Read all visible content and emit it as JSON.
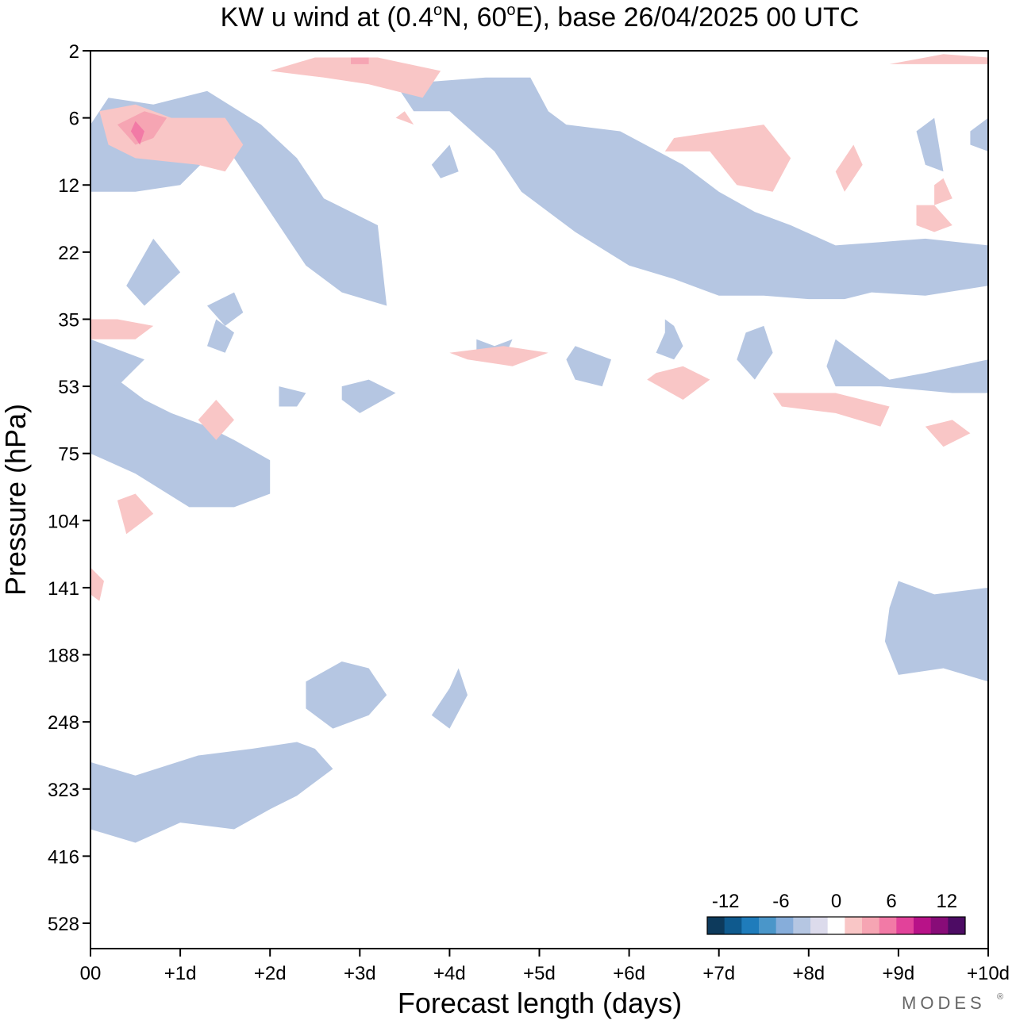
{
  "chart_data": {
    "type": "heatmap",
    "title": "KW u wind at (0.4°N, 60°E),  base 26/04/2025  00 UTC",
    "title_parts": {
      "pre": "KW u wind at (0.4",
      "deg1": "o",
      "mid1": "N, 60",
      "deg2": "o",
      "post": "E),  base 26/04/2025  00 UTC"
    },
    "xlabel": "Forecast length (days)",
    "ylabel": "Pressure (hPa)",
    "xlim": [
      0,
      10
    ],
    "x_ticks": [
      {
        "value": 0,
        "label": "00"
      },
      {
        "value": 1,
        "label": "+1d"
      },
      {
        "value": 2,
        "label": "+2d"
      },
      {
        "value": 3,
        "label": "+3d"
      },
      {
        "value": 4,
        "label": "+4d"
      },
      {
        "value": 5,
        "label": "+5d"
      },
      {
        "value": 6,
        "label": "+6d"
      },
      {
        "value": 7,
        "label": "+7d"
      },
      {
        "value": 8,
        "label": "+8d"
      },
      {
        "value": 9,
        "label": "+9d"
      },
      {
        "value": 10,
        "label": "+10d"
      }
    ],
    "y_ticks": [
      "2",
      "6",
      "12",
      "22",
      "35",
      "53",
      "75",
      "104",
      "141",
      "188",
      "248",
      "323",
      "416",
      "528"
    ],
    "y_scale": "pressure levels, top to bottom",
    "colorbar": {
      "ticks": [
        {
          "value": -12,
          "label": "-12"
        },
        {
          "value": -6,
          "label": "-6"
        },
        {
          "value": 0,
          "label": "0"
        },
        {
          "value": 6,
          "label": "6"
        },
        {
          "value": 12,
          "label": "12"
        }
      ],
      "range": [
        -14,
        14
      ],
      "step": 2,
      "colors": [
        "#0d3a5c",
        "#0f5a8e",
        "#1f7cbb",
        "#4a96c9",
        "#86adda",
        "#b5c6e2",
        "#dcdbec",
        "#ffffff",
        "#f9c6c6",
        "#f6a5b3",
        "#f27aa6",
        "#e2429a",
        "#b81288",
        "#880c78",
        "#4d0c64"
      ]
    },
    "regions": [
      {
        "level": -4,
        "pts": [
          [
            0,
            2.1
          ],
          [
            0.5,
            2.1
          ],
          [
            1.0,
            2.0
          ],
          [
            1.3,
            1.6
          ],
          [
            1.6,
            1.6
          ],
          [
            2.0,
            2.4
          ],
          [
            2.4,
            3.2
          ],
          [
            2.8,
            3.6
          ],
          [
            3.3,
            3.8
          ],
          [
            3.2,
            2.6
          ],
          [
            2.6,
            2.2
          ],
          [
            2.3,
            1.6
          ],
          [
            1.9,
            1.1
          ],
          [
            1.3,
            0.6
          ],
          [
            0.7,
            0.8
          ],
          [
            0.2,
            0.7
          ],
          [
            0,
            1.1
          ]
        ]
      },
      {
        "level": -4,
        "pts": [
          [
            3.4,
            0.5
          ],
          [
            4.4,
            0.4
          ],
          [
            4.9,
            0.4
          ],
          [
            5.1,
            0.9
          ],
          [
            5.3,
            1.1
          ],
          [
            5.9,
            1.2
          ],
          [
            6.6,
            1.7
          ],
          [
            7.0,
            2.1
          ],
          [
            7.4,
            2.4
          ],
          [
            7.8,
            2.6
          ],
          [
            8.3,
            2.9
          ],
          [
            8.8,
            2.85
          ],
          [
            9.3,
            2.8
          ],
          [
            10,
            2.9
          ],
          [
            10,
            3.5
          ],
          [
            9.3,
            3.65
          ],
          [
            8.7,
            3.6
          ],
          [
            8.4,
            3.7
          ],
          [
            8.0,
            3.7
          ],
          [
            7.5,
            3.65
          ],
          [
            7.0,
            3.65
          ],
          [
            6.5,
            3.4
          ],
          [
            6.0,
            3.2
          ],
          [
            5.4,
            2.7
          ],
          [
            5.1,
            2.4
          ],
          [
            4.8,
            2.1
          ],
          [
            4.5,
            1.5
          ],
          [
            4.0,
            0.9
          ],
          [
            3.6,
            0.9
          ]
        ]
      },
      {
        "level": -4,
        "pts": [
          [
            9.0,
            7.9
          ],
          [
            9.4,
            8.1
          ],
          [
            10,
            8.0
          ],
          [
            10,
            9.4
          ],
          [
            9.5,
            9.2
          ],
          [
            9.0,
            9.3
          ],
          [
            8.85,
            8.8
          ],
          [
            8.9,
            8.3
          ]
        ]
      },
      {
        "level": -4,
        "pts": [
          [
            0,
            11.6
          ],
          [
            0.5,
            11.8
          ],
          [
            1.0,
            11.5
          ],
          [
            1.6,
            11.6
          ],
          [
            2.0,
            11.3
          ],
          [
            2.3,
            11.1
          ],
          [
            2.7,
            10.7
          ],
          [
            2.5,
            10.4
          ],
          [
            2.3,
            10.3
          ],
          [
            1.8,
            10.4
          ],
          [
            1.2,
            10.5
          ],
          [
            0.5,
            10.8
          ],
          [
            0,
            10.6
          ]
        ]
      },
      {
        "level": -4,
        "pts": [
          [
            2.4,
            9.4
          ],
          [
            2.8,
            9.1
          ],
          [
            3.1,
            9.2
          ],
          [
            3.3,
            9.6
          ],
          [
            3.1,
            9.9
          ],
          [
            2.7,
            10.1
          ],
          [
            2.4,
            9.8
          ]
        ]
      },
      {
        "level": -4,
        "pts": [
          [
            4.0,
            9.5
          ],
          [
            4.1,
            9.2
          ],
          [
            4.2,
            9.6
          ],
          [
            4.0,
            10.1
          ],
          [
            3.8,
            9.9
          ]
        ]
      },
      {
        "level": -4,
        "pts": [
          [
            0,
            4.8
          ],
          [
            0.3,
            4.9
          ],
          [
            0.6,
            5.2
          ],
          [
            0.9,
            5.4
          ],
          [
            1.3,
            5.6
          ],
          [
            1.6,
            5.8
          ],
          [
            2.0,
            6.1
          ],
          [
            2.0,
            6.6
          ],
          [
            1.6,
            6.8
          ],
          [
            1.1,
            6.8
          ],
          [
            0.5,
            6.3
          ],
          [
            0,
            6.0
          ]
        ]
      },
      {
        "level": -4,
        "pts": [
          [
            0,
            4.3
          ],
          [
            0.6,
            4.6
          ],
          [
            0.3,
            5.0
          ],
          [
            0,
            4.8
          ]
        ]
      },
      {
        "level": -4,
        "pts": [
          [
            0.4,
            3.5
          ],
          [
            0.7,
            2.8
          ],
          [
            1.0,
            3.3
          ],
          [
            0.6,
            3.8
          ]
        ]
      },
      {
        "level": -4,
        "pts": [
          [
            1.3,
            3.8
          ],
          [
            1.6,
            3.6
          ],
          [
            1.7,
            3.9
          ],
          [
            1.5,
            4.1
          ]
        ]
      },
      {
        "level": -4,
        "pts": [
          [
            1.4,
            4.0
          ],
          [
            1.6,
            4.2
          ],
          [
            1.5,
            4.5
          ],
          [
            1.3,
            4.4
          ]
        ]
      },
      {
        "level": -4,
        "pts": [
          [
            2.1,
            5.0
          ],
          [
            2.4,
            5.1
          ],
          [
            2.3,
            5.3
          ],
          [
            2.1,
            5.3
          ]
        ]
      },
      {
        "level": -4,
        "pts": [
          [
            2.8,
            5.0
          ],
          [
            3.1,
            4.9
          ],
          [
            3.4,
            5.1
          ],
          [
            3.0,
            5.4
          ],
          [
            2.8,
            5.2
          ]
        ]
      },
      {
        "level": -4,
        "pts": [
          [
            4.3,
            4.3
          ],
          [
            4.5,
            4.4
          ],
          [
            4.7,
            4.3
          ],
          [
            4.6,
            4.6
          ],
          [
            4.3,
            4.6
          ]
        ]
      },
      {
        "level": -4,
        "pts": [
          [
            5.4,
            4.4
          ],
          [
            5.8,
            4.6
          ],
          [
            5.7,
            5.0
          ],
          [
            5.4,
            4.9
          ],
          [
            5.3,
            4.6
          ]
        ]
      },
      {
        "level": -4,
        "pts": [
          [
            6.4,
            4.0
          ],
          [
            6.5,
            4.1
          ],
          [
            6.6,
            4.4
          ],
          [
            6.5,
            4.6
          ],
          [
            6.3,
            4.5
          ],
          [
            6.4,
            4.2
          ]
        ]
      },
      {
        "level": -4,
        "pts": [
          [
            7.3,
            4.2
          ],
          [
            7.5,
            4.1
          ],
          [
            7.6,
            4.5
          ],
          [
            7.4,
            4.9
          ],
          [
            7.2,
            4.6
          ]
        ]
      },
      {
        "level": -4,
        "pts": [
          [
            8.3,
            4.3
          ],
          [
            8.5,
            4.5
          ],
          [
            8.9,
            4.9
          ],
          [
            9.3,
            4.8
          ],
          [
            10,
            4.6
          ],
          [
            10,
            5.1
          ],
          [
            9.6,
            5.1
          ],
          [
            8.8,
            5.0
          ],
          [
            8.3,
            5.0
          ],
          [
            8.2,
            4.7
          ]
        ]
      },
      {
        "level": -4,
        "pts": [
          [
            3.8,
            1.7
          ],
          [
            4.0,
            1.4
          ],
          [
            4.1,
            1.8
          ],
          [
            3.9,
            1.9
          ]
        ]
      },
      {
        "level": -4,
        "pts": [
          [
            9.8,
            1.2
          ],
          [
            10,
            1.0
          ],
          [
            10,
            1.5
          ],
          [
            9.8,
            1.4
          ]
        ]
      },
      {
        "level": -4,
        "pts": [
          [
            9.2,
            1.2
          ],
          [
            9.4,
            1.0
          ],
          [
            9.5,
            1.8
          ],
          [
            9.3,
            1.7
          ]
        ]
      },
      {
        "level": 2,
        "pts": [
          [
            0.1,
            0.9
          ],
          [
            0.5,
            0.8
          ],
          [
            0.9,
            1.0
          ],
          [
            1.5,
            1.0
          ],
          [
            1.7,
            1.4
          ],
          [
            1.5,
            1.8
          ],
          [
            1.2,
            1.7
          ],
          [
            0.5,
            1.6
          ],
          [
            0.2,
            1.4
          ]
        ]
      },
      {
        "level": 4,
        "pts": [
          [
            0.3,
            1.1
          ],
          [
            0.6,
            0.9
          ],
          [
            0.85,
            1.0
          ],
          [
            0.7,
            1.3
          ],
          [
            0.5,
            1.4
          ]
        ]
      },
      {
        "level": 6,
        "pts": [
          [
            0.5,
            1.05
          ],
          [
            0.6,
            1.2
          ],
          [
            0.55,
            1.4
          ],
          [
            0.45,
            1.2
          ]
        ]
      },
      {
        "level": 2,
        "pts": [
          [
            2.0,
            0.3
          ],
          [
            2.5,
            0.1
          ],
          [
            3.2,
            0.1
          ],
          [
            3.9,
            0.3
          ],
          [
            3.7,
            0.7
          ],
          [
            3.1,
            0.5
          ],
          [
            2.6,
            0.4
          ]
        ]
      },
      {
        "level": 4,
        "pts": [
          [
            2.9,
            0.1
          ],
          [
            3.1,
            0.1
          ],
          [
            3.1,
            0.2
          ],
          [
            2.9,
            0.2
          ]
        ]
      },
      {
        "level": 2,
        "pts": [
          [
            6.5,
            1.3
          ],
          [
            7.0,
            1.2
          ],
          [
            7.5,
            1.1
          ],
          [
            7.8,
            1.6
          ],
          [
            7.6,
            2.1
          ],
          [
            7.2,
            2.0
          ],
          [
            6.9,
            1.5
          ],
          [
            6.4,
            1.5
          ]
        ]
      },
      {
        "level": 2,
        "pts": [
          [
            8.3,
            1.8
          ],
          [
            8.5,
            1.4
          ],
          [
            8.6,
            1.7
          ],
          [
            8.4,
            2.1
          ]
        ]
      },
      {
        "level": 2,
        "pts": [
          [
            9.4,
            2.0
          ],
          [
            9.5,
            1.9
          ],
          [
            9.6,
            2.2
          ],
          [
            9.4,
            2.3
          ]
        ]
      },
      {
        "level": 2,
        "pts": [
          [
            0,
            4.0
          ],
          [
            0.3,
            4.0
          ],
          [
            0.7,
            4.1
          ],
          [
            0.5,
            4.3
          ],
          [
            0,
            4.3
          ]
        ]
      },
      {
        "level": 2,
        "pts": [
          [
            1.2,
            5.5
          ],
          [
            1.4,
            5.2
          ],
          [
            1.6,
            5.5
          ],
          [
            1.4,
            5.8
          ]
        ]
      },
      {
        "level": 2,
        "pts": [
          [
            0.3,
            6.7
          ],
          [
            0.5,
            6.6
          ],
          [
            0.7,
            6.9
          ],
          [
            0.4,
            7.2
          ]
        ]
      },
      {
        "level": 2,
        "pts": [
          [
            4.0,
            4.5
          ],
          [
            4.6,
            4.4
          ],
          [
            5.1,
            4.5
          ],
          [
            4.7,
            4.7
          ],
          [
            4.2,
            4.6
          ]
        ]
      },
      {
        "level": 2,
        "pts": [
          [
            6.3,
            4.8
          ],
          [
            6.6,
            4.7
          ],
          [
            6.9,
            4.9
          ],
          [
            6.6,
            5.2
          ],
          [
            6.2,
            4.9
          ]
        ]
      },
      {
        "level": 2,
        "pts": [
          [
            7.6,
            5.1
          ],
          [
            8.3,
            5.1
          ],
          [
            8.9,
            5.3
          ],
          [
            8.8,
            5.6
          ],
          [
            8.3,
            5.4
          ],
          [
            7.7,
            5.3
          ]
        ]
      },
      {
        "level": 2,
        "pts": [
          [
            9.3,
            5.6
          ],
          [
            9.6,
            5.5
          ],
          [
            9.8,
            5.7
          ],
          [
            9.5,
            5.9
          ]
        ]
      },
      {
        "level": 2,
        "pts": [
          [
            8.9,
            0.2
          ],
          [
            9.5,
            0.05
          ],
          [
            10,
            0.1
          ],
          [
            10,
            0.2
          ],
          [
            9.5,
            0.2
          ]
        ]
      },
      {
        "level": 2,
        "pts": [
          [
            0,
            7.7
          ],
          [
            0.15,
            7.9
          ],
          [
            0.1,
            8.2
          ],
          [
            0,
            8.1
          ]
        ]
      },
      {
        "level": 2,
        "pts": [
          [
            3.5,
            0.9
          ],
          [
            3.6,
            1.1
          ],
          [
            3.4,
            1.0
          ]
        ]
      },
      {
        "level": 2,
        "pts": [
          [
            9.2,
            2.3
          ],
          [
            9.4,
            2.3
          ],
          [
            9.6,
            2.6
          ],
          [
            9.4,
            2.7
          ],
          [
            9.2,
            2.6
          ]
        ]
      }
    ],
    "grid": false
  },
  "watermark": "MODES",
  "watermark_mark": "®"
}
